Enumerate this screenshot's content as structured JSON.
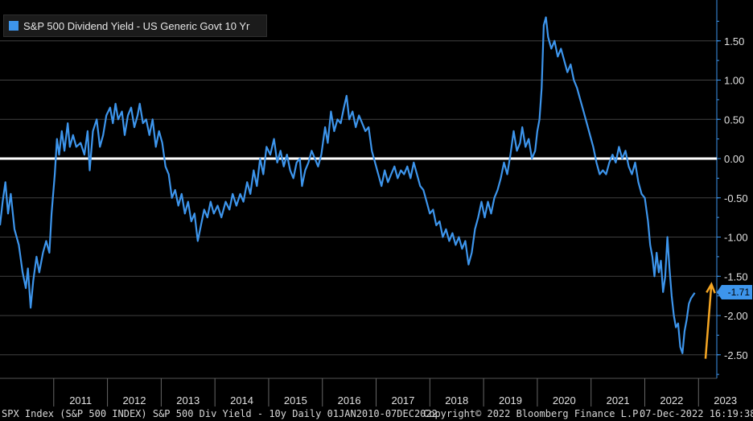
{
  "chart_data": {
    "type": "line",
    "title": "S&P 500 Dividend Yield - US Generic Govt 10 Yr",
    "series": [
      {
        "name": "S&P 500 Dividend Yield - US Generic Govt 10 Yr",
        "color": "#3d95ec",
        "points": [
          [
            2010.0,
            -0.85
          ],
          [
            2010.05,
            -0.55
          ],
          [
            2010.1,
            -0.3
          ],
          [
            2010.15,
            -0.7
          ],
          [
            2010.2,
            -0.45
          ],
          [
            2010.27,
            -0.9
          ],
          [
            2010.35,
            -1.1
          ],
          [
            2010.42,
            -1.45
          ],
          [
            2010.48,
            -1.65
          ],
          [
            2010.52,
            -1.4
          ],
          [
            2010.57,
            -1.9
          ],
          [
            2010.62,
            -1.55
          ],
          [
            2010.68,
            -1.25
          ],
          [
            2010.73,
            -1.45
          ],
          [
            2010.8,
            -1.2
          ],
          [
            2010.86,
            -1.05
          ],
          [
            2010.92,
            -1.2
          ],
          [
            2010.96,
            -0.7
          ],
          [
            2011.02,
            -0.2
          ],
          [
            2011.06,
            0.25
          ],
          [
            2011.1,
            0.05
          ],
          [
            2011.15,
            0.35
          ],
          [
            2011.2,
            0.1
          ],
          [
            2011.26,
            0.45
          ],
          [
            2011.3,
            0.15
          ],
          [
            2011.36,
            0.3
          ],
          [
            2011.42,
            0.15
          ],
          [
            2011.5,
            0.2
          ],
          [
            2011.57,
            0.05
          ],
          [
            2011.63,
            0.35
          ],
          [
            2011.67,
            -0.15
          ],
          [
            2011.73,
            0.35
          ],
          [
            2011.8,
            0.5
          ],
          [
            2011.86,
            0.15
          ],
          [
            2011.92,
            0.3
          ],
          [
            2011.98,
            0.55
          ],
          [
            2012.05,
            0.65
          ],
          [
            2012.1,
            0.45
          ],
          [
            2012.15,
            0.7
          ],
          [
            2012.2,
            0.5
          ],
          [
            2012.27,
            0.6
          ],
          [
            2012.32,
            0.3
          ],
          [
            2012.38,
            0.55
          ],
          [
            2012.44,
            0.65
          ],
          [
            2012.5,
            0.4
          ],
          [
            2012.56,
            0.55
          ],
          [
            2012.6,
            0.7
          ],
          [
            2012.66,
            0.45
          ],
          [
            2012.72,
            0.5
          ],
          [
            2012.78,
            0.3
          ],
          [
            2012.84,
            0.5
          ],
          [
            2012.9,
            0.15
          ],
          [
            2012.96,
            0.35
          ],
          [
            2013.02,
            0.2
          ],
          [
            2013.08,
            -0.1
          ],
          [
            2013.14,
            -0.2
          ],
          [
            2013.2,
            -0.5
          ],
          [
            2013.26,
            -0.4
          ],
          [
            2013.32,
            -0.6
          ],
          [
            2013.38,
            -0.45
          ],
          [
            2013.44,
            -0.7
          ],
          [
            2013.5,
            -0.55
          ],
          [
            2013.56,
            -0.8
          ],
          [
            2013.62,
            -0.7
          ],
          [
            2013.68,
            -1.05
          ],
          [
            2013.74,
            -0.85
          ],
          [
            2013.8,
            -0.65
          ],
          [
            2013.86,
            -0.75
          ],
          [
            2013.92,
            -0.55
          ],
          [
            2013.98,
            -0.7
          ],
          [
            2014.05,
            -0.6
          ],
          [
            2014.12,
            -0.75
          ],
          [
            2014.2,
            -0.55
          ],
          [
            2014.27,
            -0.65
          ],
          [
            2014.33,
            -0.45
          ],
          [
            2014.4,
            -0.6
          ],
          [
            2014.47,
            -0.45
          ],
          [
            2014.53,
            -0.55
          ],
          [
            2014.6,
            -0.3
          ],
          [
            2014.66,
            -0.45
          ],
          [
            2014.72,
            -0.15
          ],
          [
            2014.78,
            -0.35
          ],
          [
            2014.84,
            0.0
          ],
          [
            2014.9,
            -0.2
          ],
          [
            2014.96,
            0.15
          ],
          [
            2015.03,
            0.05
          ],
          [
            2015.1,
            0.25
          ],
          [
            2015.16,
            -0.05
          ],
          [
            2015.22,
            0.1
          ],
          [
            2015.28,
            -0.1
          ],
          [
            2015.34,
            0.05
          ],
          [
            2015.4,
            -0.15
          ],
          [
            2015.46,
            -0.25
          ],
          [
            2015.52,
            -0.05
          ],
          [
            2015.58,
            0.0
          ],
          [
            2015.62,
            -0.35
          ],
          [
            2015.68,
            -0.15
          ],
          [
            2015.74,
            -0.05
          ],
          [
            2015.8,
            0.1
          ],
          [
            2015.86,
            0.0
          ],
          [
            2015.92,
            -0.1
          ],
          [
            2015.98,
            0.05
          ],
          [
            2016.05,
            0.4
          ],
          [
            2016.1,
            0.2
          ],
          [
            2016.16,
            0.6
          ],
          [
            2016.22,
            0.35
          ],
          [
            2016.28,
            0.5
          ],
          [
            2016.34,
            0.45
          ],
          [
            2016.4,
            0.65
          ],
          [
            2016.45,
            0.8
          ],
          [
            2016.5,
            0.5
          ],
          [
            2016.56,
            0.6
          ],
          [
            2016.62,
            0.4
          ],
          [
            2016.68,
            0.55
          ],
          [
            2016.74,
            0.45
          ],
          [
            2016.8,
            0.35
          ],
          [
            2016.86,
            0.4
          ],
          [
            2016.92,
            0.1
          ],
          [
            2016.98,
            -0.05
          ],
          [
            2017.04,
            -0.2
          ],
          [
            2017.1,
            -0.35
          ],
          [
            2017.16,
            -0.15
          ],
          [
            2017.22,
            -0.3
          ],
          [
            2017.28,
            -0.2
          ],
          [
            2017.34,
            -0.1
          ],
          [
            2017.4,
            -0.25
          ],
          [
            2017.46,
            -0.15
          ],
          [
            2017.52,
            -0.2
          ],
          [
            2017.58,
            -0.1
          ],
          [
            2017.64,
            -0.25
          ],
          [
            2017.7,
            -0.05
          ],
          [
            2017.76,
            -0.2
          ],
          [
            2017.82,
            -0.35
          ],
          [
            2017.88,
            -0.4
          ],
          [
            2017.94,
            -0.55
          ],
          [
            2018.0,
            -0.7
          ],
          [
            2018.06,
            -0.65
          ],
          [
            2018.12,
            -0.85
          ],
          [
            2018.18,
            -0.8
          ],
          [
            2018.24,
            -1.0
          ],
          [
            2018.3,
            -0.9
          ],
          [
            2018.36,
            -1.05
          ],
          [
            2018.42,
            -0.95
          ],
          [
            2018.48,
            -1.1
          ],
          [
            2018.54,
            -1.0
          ],
          [
            2018.6,
            -1.15
          ],
          [
            2018.66,
            -1.05
          ],
          [
            2018.72,
            -1.35
          ],
          [
            2018.78,
            -1.2
          ],
          [
            2018.84,
            -0.9
          ],
          [
            2018.9,
            -0.75
          ],
          [
            2018.96,
            -0.55
          ],
          [
            2019.02,
            -0.75
          ],
          [
            2019.08,
            -0.55
          ],
          [
            2019.14,
            -0.7
          ],
          [
            2019.2,
            -0.5
          ],
          [
            2019.26,
            -0.4
          ],
          [
            2019.32,
            -0.25
          ],
          [
            2019.38,
            -0.05
          ],
          [
            2019.44,
            -0.2
          ],
          [
            2019.5,
            0.05
          ],
          [
            2019.56,
            0.35
          ],
          [
            2019.62,
            0.1
          ],
          [
            2019.68,
            0.2
          ],
          [
            2019.72,
            0.4
          ],
          [
            2019.78,
            0.15
          ],
          [
            2019.84,
            0.25
          ],
          [
            2019.9,
            0.0
          ],
          [
            2019.96,
            0.1
          ],
          [
            2020.0,
            0.35
          ],
          [
            2020.04,
            0.5
          ],
          [
            2020.08,
            0.9
          ],
          [
            2020.12,
            1.7
          ],
          [
            2020.16,
            1.8
          ],
          [
            2020.2,
            1.55
          ],
          [
            2020.26,
            1.4
          ],
          [
            2020.32,
            1.5
          ],
          [
            2020.38,
            1.3
          ],
          [
            2020.44,
            1.4
          ],
          [
            2020.5,
            1.25
          ],
          [
            2020.56,
            1.1
          ],
          [
            2020.62,
            1.2
          ],
          [
            2020.68,
            1.0
          ],
          [
            2020.74,
            0.9
          ],
          [
            2020.8,
            0.75
          ],
          [
            2020.86,
            0.6
          ],
          [
            2020.92,
            0.45
          ],
          [
            2020.98,
            0.3
          ],
          [
            2021.04,
            0.15
          ],
          [
            2021.1,
            -0.05
          ],
          [
            2021.16,
            -0.2
          ],
          [
            2021.22,
            -0.15
          ],
          [
            2021.28,
            -0.2
          ],
          [
            2021.34,
            -0.05
          ],
          [
            2021.4,
            0.05
          ],
          [
            2021.46,
            -0.05
          ],
          [
            2021.52,
            0.15
          ],
          [
            2021.58,
            0.0
          ],
          [
            2021.64,
            0.1
          ],
          [
            2021.7,
            -0.1
          ],
          [
            2021.76,
            -0.2
          ],
          [
            2021.82,
            -0.05
          ],
          [
            2021.88,
            -0.3
          ],
          [
            2021.94,
            -0.45
          ],
          [
            2022.0,
            -0.5
          ],
          [
            2022.06,
            -0.8
          ],
          [
            2022.1,
            -1.1
          ],
          [
            2022.14,
            -1.25
          ],
          [
            2022.18,
            -1.5
          ],
          [
            2022.22,
            -1.2
          ],
          [
            2022.26,
            -1.45
          ],
          [
            2022.3,
            -1.3
          ],
          [
            2022.34,
            -1.7
          ],
          [
            2022.38,
            -1.5
          ],
          [
            2022.42,
            -1.0
          ],
          [
            2022.46,
            -1.4
          ],
          [
            2022.5,
            -1.75
          ],
          [
            2022.54,
            -2.0
          ],
          [
            2022.58,
            -2.15
          ],
          [
            2022.62,
            -2.1
          ],
          [
            2022.66,
            -2.4
          ],
          [
            2022.7,
            -2.48
          ],
          [
            2022.74,
            -2.2
          ],
          [
            2022.78,
            -2.05
          ],
          [
            2022.82,
            -1.85
          ],
          [
            2022.86,
            -1.78
          ],
          [
            2022.93,
            -1.71
          ]
        ]
      }
    ],
    "xlim": [
      2010.0,
      2023.34
    ],
    "ylim": [
      -2.75,
      2.0
    ],
    "x_ticks": [
      "2011",
      "2012",
      "2013",
      "2014",
      "2015",
      "2016",
      "2017",
      "2018",
      "2019",
      "2020",
      "2021",
      "2022",
      "2023"
    ],
    "y_ticks": [
      "1.50",
      "1.00",
      "0.50",
      "0.00",
      "-0.50",
      "-1.00",
      "-1.50",
      "-2.00",
      "-2.50"
    ],
    "y_tick_values": [
      1.5,
      1.0,
      0.5,
      0.0,
      -0.5,
      -1.0,
      -1.5,
      -2.0,
      -2.5
    ],
    "zero_line": 0.0,
    "last_value_label": "-1.71",
    "last_value": -1.71,
    "annotation": {
      "type": "arrow",
      "color": "#f5a623",
      "from": [
        2023.13,
        -2.55
      ],
      "to": [
        2023.24,
        -1.6
      ]
    },
    "legend_position": "top-left",
    "grid": true,
    "xlabel": "",
    "ylabel": ""
  },
  "footer": {
    "left": "SPX Index (S&P 500 INDEX) S&P 500 Div Yield - 10y  Daily 01JAN2010-07DEC2022",
    "center": "Copyright© 2022 Bloomberg Finance L.P.",
    "right": "07-Dec-2022 16:19:38"
  },
  "colors": {
    "series": "#3d95ec",
    "arrow": "#f5a623",
    "grid": "#404040",
    "zero": "#ffffff",
    "axis": "#3d95ec"
  }
}
